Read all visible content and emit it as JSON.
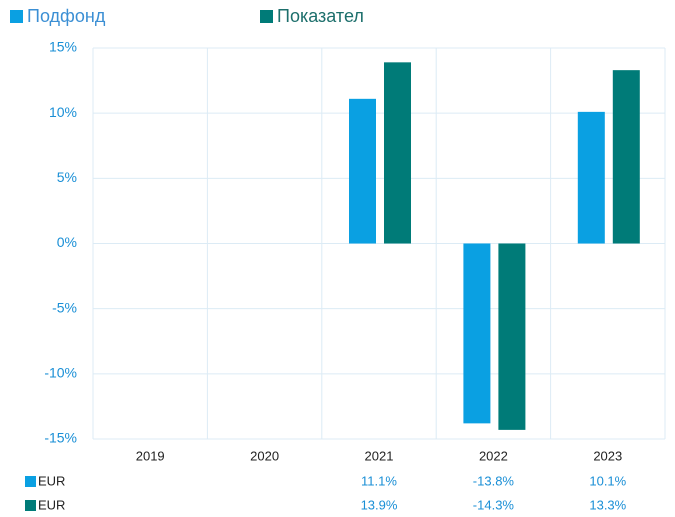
{
  "chart_data": {
    "type": "bar",
    "categories": [
      "2019",
      "2020",
      "2021",
      "2022",
      "2023"
    ],
    "series": [
      {
        "name": "Подфонд",
        "color": "#0aa0e2",
        "row_label": "EUR",
        "values": [
          null,
          null,
          11.1,
          -13.8,
          10.1
        ],
        "value_labels": [
          null,
          null,
          "11.1%",
          "-13.8%",
          "10.1%"
        ]
      },
      {
        "name": "Показател",
        "color": "#007b78",
        "row_label": "EUR",
        "values": [
          null,
          null,
          13.9,
          -14.3,
          13.3
        ],
        "value_labels": [
          null,
          null,
          "13.9%",
          "-14.3%",
          "13.3%"
        ]
      }
    ],
    "ylim": [
      -15,
      15
    ],
    "yticks": [
      {
        "value": -15,
        "label": "-15%"
      },
      {
        "value": -10,
        "label": "-10%"
      },
      {
        "value": -5,
        "label": "-5%"
      },
      {
        "value": 0,
        "label": "0%"
      },
      {
        "value": 5,
        "label": "5%"
      },
      {
        "value": 10,
        "label": "10%"
      },
      {
        "value": 15,
        "label": "15%"
      }
    ],
    "grid": true
  }
}
